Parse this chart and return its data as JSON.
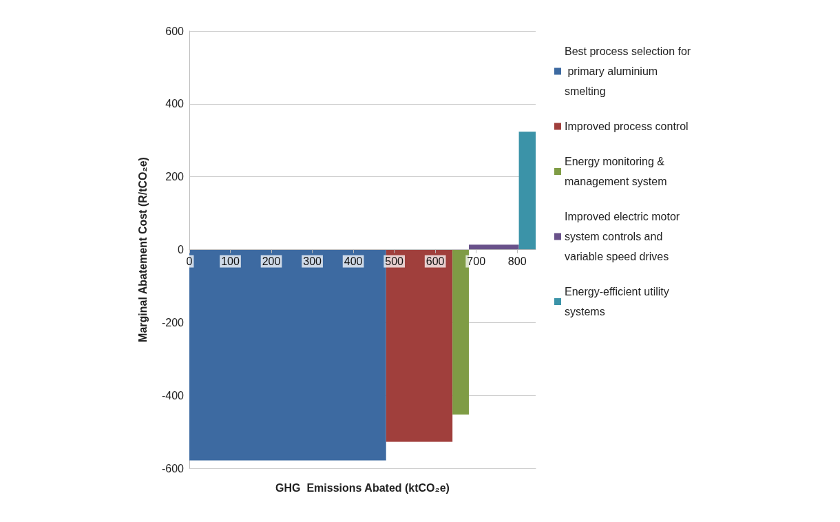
{
  "chart_data": {
    "type": "area",
    "xlabel": "GHG  Emissions Abated (ktCO₂e)",
    "ylabel": "Marginal Abatement Cost (R/tCO₂e)",
    "xlim": [
      0,
      845
    ],
    "xticks": [
      0,
      100,
      200,
      300,
      400,
      500,
      600,
      700,
      800
    ],
    "ylim": [
      -600,
      600
    ],
    "yticks": [
      -600,
      -400,
      -200,
      0,
      200,
      400,
      600
    ],
    "grid": "y",
    "legend": "right",
    "marker": "none",
    "series": [
      {
        "name": "Best process selection for primary aluminium smelting",
        "color": "#3d6aa1",
        "x": [
          0,
          480
        ],
        "values": [
          -578,
          -578
        ]
      },
      {
        "name": "Improved process control",
        "color": "#a03f3c",
        "x": [
          480,
          642
        ],
        "values": [
          -527,
          -527
        ]
      },
      {
        "name": "Energy monitoring & management system",
        "color": "#7f9c45",
        "x": [
          642,
          682
        ],
        "values": [
          -452,
          -452
        ]
      },
      {
        "name": "Improved electric motor system controls and variable speed drives",
        "color": "#69518a",
        "x": [
          682,
          804
        ],
        "values": [
          13,
          13
        ]
      },
      {
        "name": "Energy-efficient utility systems",
        "color": "#3b93a8",
        "x": [
          804,
          845
        ],
        "values": [
          323,
          323
        ]
      }
    ]
  }
}
